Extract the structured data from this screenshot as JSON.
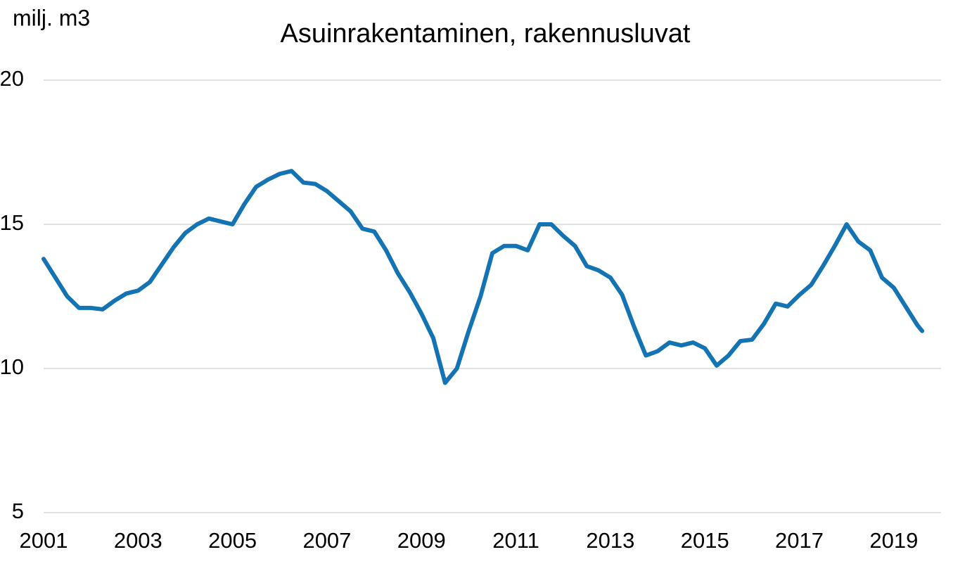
{
  "chart_data": {
    "type": "line",
    "title": "Asuinrakentaminen, rakennusluvat",
    "y_label": "milj. m3",
    "x": [
      2001,
      2001.25,
      2001.5,
      2001.75,
      2002,
      2002.25,
      2002.5,
      2002.75,
      2003,
      2003.25,
      2003.5,
      2003.75,
      2004,
      2004.25,
      2004.5,
      2004.75,
      2005,
      2005.25,
      2005.5,
      2005.75,
      2006,
      2006.25,
      2006.5,
      2006.75,
      2007,
      2007.25,
      2007.5,
      2007.75,
      2008,
      2008.25,
      2008.5,
      2008.75,
      2009,
      2009.25,
      2009.5,
      2009.75,
      2010,
      2010.25,
      2010.5,
      2010.75,
      2011,
      2011.25,
      2011.5,
      2011.75,
      2012,
      2012.25,
      2012.5,
      2012.75,
      2013,
      2013.25,
      2013.5,
      2013.75,
      2014,
      2014.25,
      2014.5,
      2014.75,
      2015,
      2015.25,
      2015.5,
      2015.75,
      2016,
      2016.25,
      2016.5,
      2016.75,
      2017,
      2017.25,
      2017.5,
      2017.75,
      2018,
      2018.25,
      2018.5,
      2018.75,
      2019,
      2019.25,
      2019.5,
      2019.6
    ],
    "series": [
      {
        "color": "#1474b3",
        "values": [
          13.8,
          13.15,
          12.5,
          12.1,
          12.1,
          12.05,
          12.35,
          12.6,
          12.7,
          13.0,
          13.6,
          14.2,
          14.7,
          15.0,
          15.2,
          15.1,
          15.0,
          15.7,
          16.3,
          16.55,
          16.75,
          16.85,
          16.45,
          16.4,
          16.15,
          15.8,
          15.45,
          14.85,
          14.75,
          14.1,
          13.3,
          12.65,
          11.9,
          11.05,
          9.5,
          10.0,
          11.3,
          12.5,
          14.0,
          14.25,
          14.25,
          14.1,
          15.0,
          15.0,
          14.6,
          14.25,
          13.55,
          13.4,
          13.15,
          12.55,
          11.45,
          10.45,
          10.6,
          10.9,
          10.8,
          10.9,
          10.7,
          10.1,
          10.45,
          10.95,
          11.0,
          11.55,
          12.25,
          12.15,
          12.55,
          12.9,
          13.55,
          14.25,
          15.0,
          14.4,
          14.1,
          13.15,
          12.8,
          12.15,
          11.5,
          11.3
        ]
      }
    ],
    "xlim": [
      2001,
      2020
    ],
    "xticks": [
      2001,
      2003,
      2005,
      2007,
      2009,
      2011,
      2013,
      2015,
      2017,
      2019
    ],
    "ylim": [
      5,
      20
    ],
    "yticks": [
      5,
      10,
      15,
      20
    ],
    "grid": true
  }
}
